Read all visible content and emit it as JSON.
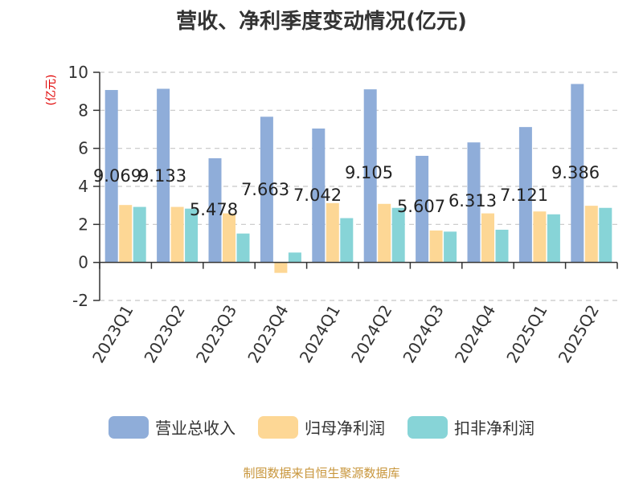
{
  "page": {
    "title": "营收、净利季度变动情况(亿元)",
    "source": "制图数据来自恒生聚源数据库"
  },
  "chart_data": {
    "type": "bar",
    "title": "营收、净利季度变动情况(亿元)",
    "ylabel": "(亿元)",
    "xlabel": "",
    "ylim": [
      -2,
      10
    ],
    "yticks": [
      -2,
      0,
      2,
      4,
      6,
      8,
      10
    ],
    "grid": true,
    "legend_position": "bottom",
    "categories": [
      "2023Q1",
      "2023Q2",
      "2023Q3",
      "2023Q4",
      "2024Q1",
      "2024Q2",
      "2024Q3",
      "2024Q4",
      "2025Q1",
      "2025Q2"
    ],
    "series": [
      {
        "name": "营业总收入",
        "color": "#8fadd9",
        "values": [
          9.069,
          9.133,
          5.478,
          7.663,
          7.042,
          9.105,
          5.607,
          6.313,
          7.121,
          9.386
        ]
      },
      {
        "name": "归母净利润",
        "color": "#fdd795",
        "values": [
          3.02,
          2.92,
          2.58,
          -0.55,
          3.12,
          3.08,
          1.68,
          2.58,
          2.68,
          2.98
        ]
      },
      {
        "name": "扣非净利润",
        "color": "#87d4d7",
        "values": [
          2.92,
          2.83,
          1.52,
          0.52,
          2.33,
          2.87,
          1.62,
          1.72,
          2.53,
          2.87
        ]
      }
    ],
    "data_labels": [
      "9.069",
      "9.133",
      "5.478",
      "7.663",
      "7.042",
      "9.105",
      "5.607",
      "6.313",
      "7.121",
      "9.386"
    ]
  }
}
